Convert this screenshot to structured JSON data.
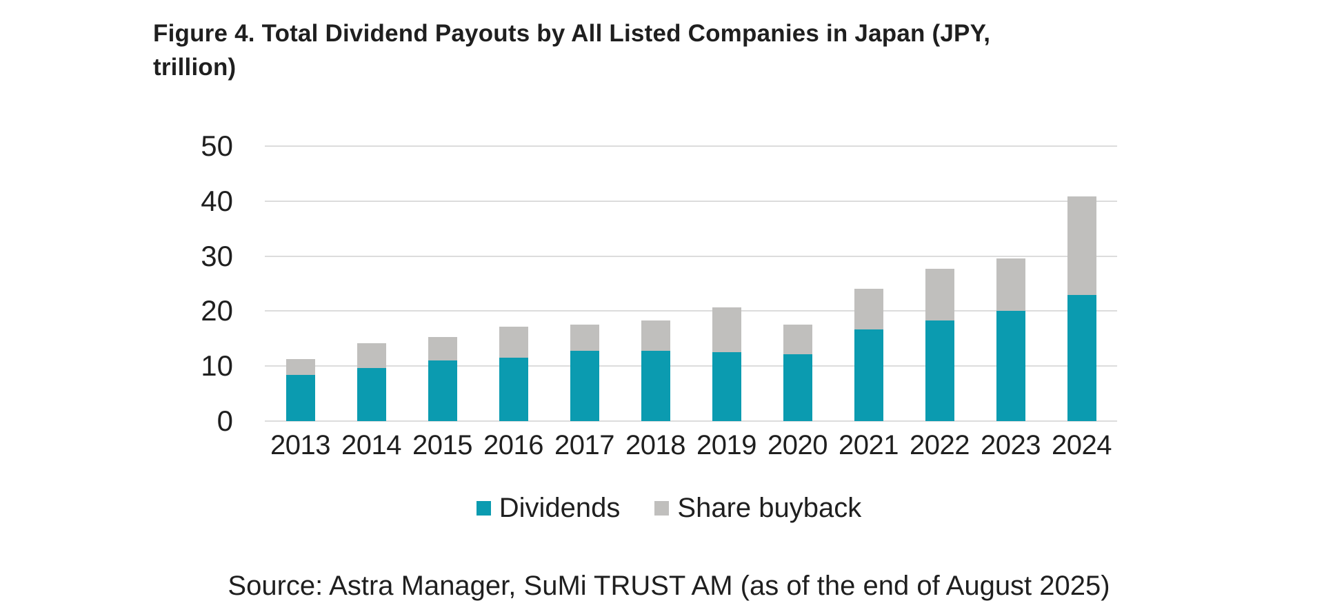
{
  "header": {
    "title_display": "Figure 4. Total Dividend Payouts by All Listed Companies in Japan (JPY,\ntrillion)"
  },
  "footer": {
    "source": "Source: Astra Manager, SuMi TRUST AM (as of the end of August 2025)"
  },
  "legend": {
    "items": [
      {
        "label": "Dividends",
        "color": "#0b9bb0"
      },
      {
        "label": "Share buyback",
        "color": "#c0bfbd"
      }
    ]
  },
  "colors": {
    "dividends": "#0b9bb0",
    "share_buyback": "#c0bfbd",
    "gridline": "#dcdcdc",
    "text": "#1f1f1f",
    "background": "#ffffff"
  },
  "chart_data": {
    "type": "bar",
    "stacked": true,
    "title": "Figure 4. Total Dividend Payouts by All Listed Companies in Japan (JPY, trillion)",
    "categories": [
      "2013",
      "2014",
      "2015",
      "2016",
      "2017",
      "2018",
      "2019",
      "2020",
      "2021",
      "2022",
      "2023",
      "2024"
    ],
    "series": [
      {
        "name": "Dividends",
        "color": "#0b9bb0",
        "values": [
          8.4,
          9.6,
          11.0,
          11.5,
          12.8,
          12.8,
          12.5,
          12.2,
          16.7,
          18.3,
          20.1,
          22.9
        ]
      },
      {
        "name": "Share buyback",
        "color": "#c0bfbd",
        "values": [
          2.9,
          4.6,
          4.3,
          5.7,
          4.7,
          5.5,
          8.2,
          5.3,
          7.3,
          9.4,
          9.5,
          17.9
        ]
      }
    ],
    "stack_totals": [
      11.3,
      14.2,
      15.3,
      17.2,
      17.5,
      18.3,
      20.7,
      17.5,
      24.0,
      27.7,
      29.6,
      40.8
    ],
    "xlabel": "",
    "ylabel": "",
    "ylim": [
      0,
      50
    ],
    "yticks": [
      0,
      10,
      20,
      30,
      40,
      50
    ],
    "grid": true,
    "legend_position": "bottom",
    "source": "Source: Astra Manager, SuMi TRUST AM (as of the end of August 2025)"
  }
}
